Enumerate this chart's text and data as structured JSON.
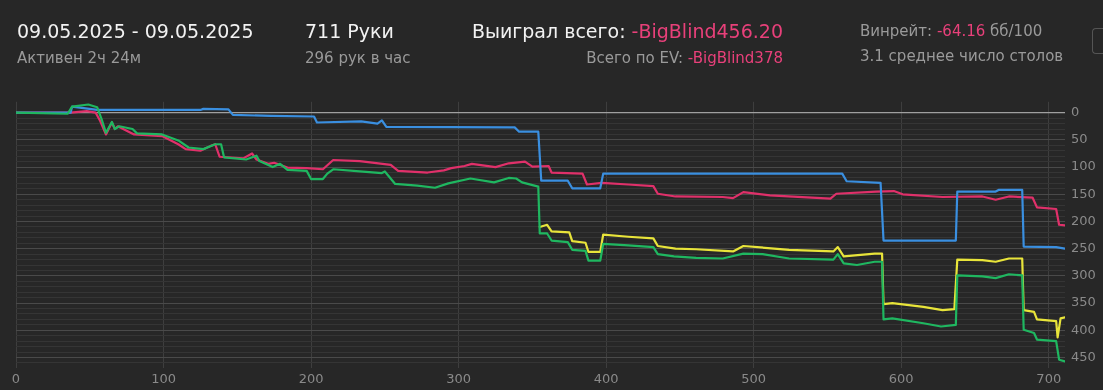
{
  "chart_data": {
    "type": "line",
    "title": "09.05.2025 - 09.05.2025",
    "subtitle": "Активен 2ч 24м",
    "annotations": [
      "711 Руки",
      "296 рук в час",
      "Выиграл всего:",
      "-BigBlind456.20",
      "Всего по EV:",
      "-BigBlind378",
      "Винрейт:",
      "-64.16",
      "бб/100",
      "3.1 среднее число столов"
    ],
    "xlim": [
      0,
      711
    ],
    "xticks": [
      0,
      100,
      200,
      300,
      400,
      500,
      600,
      700
    ],
    "ylim": [
      470,
      -20
    ],
    "yticks": [
      0,
      {
        "value": 10,
        "label": null
      },
      {
        "value": 20,
        "label": null
      },
      {
        "value": 30,
        "label": null
      },
      {
        "value": 40,
        "label": null
      },
      50,
      {
        "value": 60,
        "label": null
      },
      {
        "value": 70,
        "label": null
      },
      {
        "value": 80,
        "label": null
      },
      {
        "value": 90,
        "label": null
      },
      100,
      {
        "value": 110,
        "label": null
      },
      {
        "value": 120,
        "label": null
      },
      {
        "value": 130,
        "label": null
      },
      {
        "value": 140,
        "label": null
      },
      150,
      {
        "value": 160,
        "label": null
      },
      {
        "value": 170,
        "label": null
      },
      {
        "value": 180,
        "label": null
      },
      {
        "value": 190,
        "label": null
      },
      200,
      {
        "value": 210,
        "label": null
      },
      {
        "value": 220,
        "label": null
      },
      {
        "value": 230,
        "label": null
      },
      {
        "value": 240,
        "label": null
      },
      250,
      {
        "value": 260,
        "label": null
      },
      {
        "value": 270,
        "label": null
      },
      {
        "value": 280,
        "label": null
      },
      {
        "value": 290,
        "label": null
      },
      300,
      {
        "value": 310,
        "label": null
      },
      {
        "value": 320,
        "label": null
      },
      {
        "value": 330,
        "label": null
      },
      {
        "value": 340,
        "label": null
      },
      350,
      {
        "value": 360,
        "label": null
      },
      {
        "value": 370,
        "label": null
      },
      {
        "value": 380,
        "label": null
      },
      {
        "value": 390,
        "label": null
      },
      400,
      {
        "value": 410,
        "label": null
      },
      {
        "value": 420,
        "label": null
      },
      {
        "value": 430,
        "label": null
      },
      {
        "value": 440,
        "label": null
      },
      450,
      {
        "value": 460,
        "label": null
      }
    ],
    "grid": true,
    "legend": false,
    "marker": "none",
    "line_style": "solid",
    "ref_lines": [
      {
        "axis": "y",
        "value": 0,
        "color": "#a0a0a0"
      }
    ],
    "series": [
      {
        "color": "#e0306a",
        "x": [
          0,
          37,
          48,
          54,
          57,
          61,
          65,
          67,
          69,
          80,
          99,
          110,
          115,
          125,
          132,
          135,
          138,
          154,
          160,
          163,
          171,
          175,
          184,
          197,
          208,
          215,
          233,
          254,
          259,
          279,
          290,
          295,
          304,
          309,
          325,
          334,
          345,
          350,
          361,
          363,
          384,
          387,
          397,
          415,
          432,
          435,
          447,
          479,
          486,
          493,
          511,
          552,
          556,
          583,
          595,
          601,
          628,
          655,
          664,
          673,
          689,
          692,
          705,
          707,
          711
        ],
        "values": [
          0,
          0,
          -3,
          0,
          15,
          40,
          18,
          30,
          25,
          40,
          43,
          58,
          67,
          70,
          61,
          58,
          81,
          84,
          75,
          86,
          94,
          92,
          101,
          102,
          104,
          87,
          89,
          96,
          107,
          110,
          106,
          102,
          98,
          94,
          100,
          93,
          90,
          99,
          98,
          110,
          112,
          132,
          129,
          132,
          135,
          149,
          154,
          155,
          157,
          146,
          152,
          158,
          149,
          145,
          144,
          150,
          155,
          154,
          160,
          154,
          156,
          174,
          177,
          206,
          207
        ]
      },
      {
        "color": "#3a8fe0",
        "x": [
          0,
          37,
          38,
          55,
          125,
          127,
          144,
          147,
          173,
          202,
          204,
          234,
          245,
          248,
          251,
          338,
          341,
          354,
          356,
          374,
          377,
          396,
          398,
          479,
          560,
          563,
          586,
          588,
          637,
          638,
          664,
          666,
          682,
          683,
          705,
          711
        ],
        "values": [
          0,
          0,
          -11,
          -5,
          -5,
          -7,
          -6,
          4,
          6,
          7,
          18,
          16,
          20,
          14,
          26,
          27,
          35,
          35,
          125,
          125,
          139,
          139,
          112,
          112,
          112,
          126,
          129,
          235,
          235,
          145,
          145,
          142,
          142,
          246,
          247,
          250
        ]
      },
      {
        "color": "#e8e43a",
        "x": [
          355,
          360,
          363,
          375,
          377,
          386,
          388,
          396,
          398,
          415,
          432,
          435,
          447,
          461,
          486,
          493,
          524,
          554,
          557,
          561,
          582,
          587,
          588,
          594,
          615,
          628,
          636,
          638,
          655,
          664,
          673,
          682,
          683,
          690,
          692,
          705,
          706,
          708,
          711
        ],
        "values": [
          210,
          206,
          218,
          220,
          236,
          239,
          256,
          256,
          224,
          228,
          231,
          245,
          250,
          251,
          255,
          245,
          252,
          255,
          247,
          264,
          259,
          259,
          352,
          350,
          357,
          363,
          361,
          270,
          271,
          274,
          268,
          268,
          363,
          366,
          380,
          383,
          413,
          378,
          376
        ]
      },
      {
        "color": "#1fb760",
        "x": [
          0,
          35,
          38,
          49,
          55,
          58,
          61,
          65,
          67,
          70,
          79,
          82,
          99,
          110,
          117,
          127,
          135,
          139,
          141,
          156,
          163,
          165,
          174,
          179,
          184,
          197,
          200,
          208,
          211,
          215,
          233,
          248,
          250,
          257,
          272,
          284,
          293,
          308,
          324,
          334,
          339,
          343,
          354,
          355,
          360,
          363,
          374,
          377,
          386,
          388,
          396,
          398,
          415,
          432,
          435,
          446,
          461,
          479,
          493,
          506,
          524,
          554,
          557,
          561,
          570,
          582,
          587,
          588,
          594,
          615,
          627,
          637,
          638,
          655,
          664,
          673,
          682,
          683,
          690,
          692,
          705,
          707,
          711
        ],
        "values": [
          0,
          2,
          -11,
          -15,
          -10,
          12,
          37,
          17,
          30,
          25,
          30,
          38,
          40,
          51,
          64,
          67,
          58,
          58,
          82,
          86,
          79,
          89,
          100,
          94,
          105,
          107,
          122,
          122,
          112,
          104,
          108,
          111,
          108,
          131,
          134,
          138,
          130,
          121,
          128,
          120,
          121,
          128,
          136,
          222,
          222,
          235,
          238,
          252,
          254,
          272,
          272,
          241,
          244,
          247,
          260,
          264,
          267,
          268,
          259,
          260,
          268,
          270,
          260,
          277,
          280,
          274,
          274,
          380,
          378,
          387,
          393,
          390,
          299,
          301,
          304,
          297,
          299,
          399,
          405,
          417,
          420,
          454,
          457
        ]
      }
    ]
  }
}
